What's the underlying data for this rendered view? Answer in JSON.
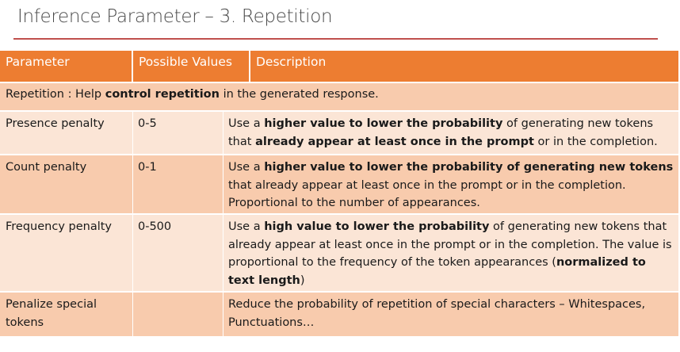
{
  "slide": {
    "title": "Inference Parameter – 3. Repetition"
  },
  "table": {
    "headers": [
      "Parameter",
      "Possible Values",
      "Description"
    ],
    "intro": [
      {
        "t": "Repetition : Help ",
        "b": false
      },
      {
        "t": "control repetition",
        "b": true
      },
      {
        "t": " in the generated response.",
        "b": false
      }
    ],
    "rows": [
      {
        "parameter": "Presence penalty",
        "values": "0-5",
        "description": [
          {
            "t": "Use a ",
            "b": false
          },
          {
            "t": "higher value to lower the probability",
            "b": true
          },
          {
            "t": " of generating new tokens that ",
            "b": false
          },
          {
            "t": "already appear at least once in the prompt",
            "b": true
          },
          {
            "t": " or in the completion.",
            "b": false
          }
        ]
      },
      {
        "parameter": "Count penalty",
        "values": "0-1",
        "description": [
          {
            "t": "Use a ",
            "b": false
          },
          {
            "t": "higher value to lower the probability of generating new tokens",
            "b": true
          },
          {
            "t": " that already appear at least once in the prompt or in the completion. Proportional to the number of appearances.",
            "b": false
          }
        ]
      },
      {
        "parameter": "Frequency penalty",
        "values": "0-500",
        "description": [
          {
            "t": "Use a ",
            "b": false
          },
          {
            "t": "high value to lower the probability",
            "b": true
          },
          {
            "t": " of generating new tokens that already appear at least once in the prompt or in the completion. The value is proportional to the frequency of the token appearances (",
            "b": false
          },
          {
            "t": "normalized to text length",
            "b": true
          },
          {
            "t": ")",
            "b": false
          }
        ]
      },
      {
        "parameter": "Penalize special tokens",
        "values": "",
        "description": [
          {
            "t": "Reduce the probability of repetition of special characters – Whitespaces, Punctuations…",
            "b": false
          }
        ]
      }
    ]
  }
}
